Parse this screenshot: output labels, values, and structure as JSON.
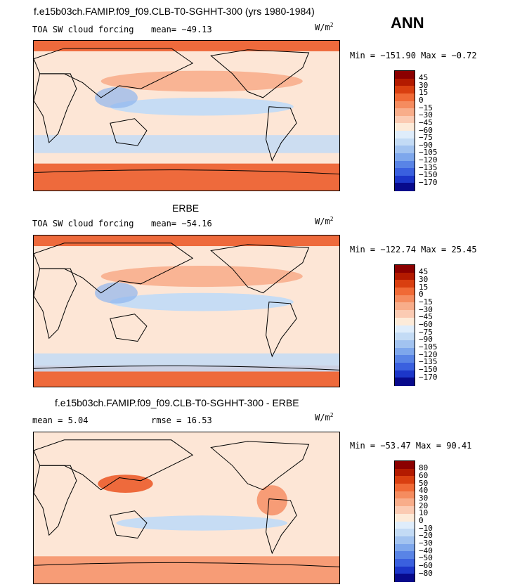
{
  "header": {
    "title": "f.e15b03ch.FAMIP.f09_f09.CLB-T0-SGHHT-300 (yrs 1980-1984)",
    "season": "ANN"
  },
  "panels": [
    {
      "variable": "TOA SW cloud forcing",
      "mean_label": "mean= −49.13",
      "units": "W/m",
      "units_exp": "2",
      "minmax": "Min = −151.90 Max =  −0.72",
      "colorbar": {
        "labels": [
          "45",
          "30",
          "15",
          "0",
          "−15",
          "−30",
          "−45",
          "−60",
          "−75",
          "−90",
          "−105",
          "−120",
          "−135",
          "−150",
          "−170"
        ],
        "colors": [
          "#8b0000",
          "#b31a00",
          "#d93f10",
          "#f06a36",
          "#f58c5f",
          "#f8ad8a",
          "#fbcbb3",
          "#fdebd9",
          "#dfedfb",
          "#c3dbf5",
          "#a2c3f0",
          "#7ea7ec",
          "#5984e6",
          "#3a60df",
          "#1c36c9",
          "#080a8c"
        ]
      }
    },
    {
      "subtitle": "ERBE",
      "variable": "TOA SW cloud forcing",
      "mean_label": "mean= −54.16",
      "units": "W/m",
      "units_exp": "2",
      "minmax": "Min = −122.74 Max =  25.45",
      "colorbar": {
        "labels": [
          "45",
          "30",
          "15",
          "0",
          "−15",
          "−30",
          "−45",
          "−60",
          "−75",
          "−90",
          "−105",
          "−120",
          "−135",
          "−150",
          "−170"
        ],
        "colors": [
          "#8b0000",
          "#b31a00",
          "#d93f10",
          "#f06a36",
          "#f58c5f",
          "#f8ad8a",
          "#fbcbb3",
          "#fdebd9",
          "#dfedfb",
          "#c3dbf5",
          "#a2c3f0",
          "#7ea7ec",
          "#5984e6",
          "#3a60df",
          "#1c36c9",
          "#080a8c"
        ]
      }
    },
    {
      "subtitle": "f.e15b03ch.FAMIP.f09_f09.CLB-T0-SGHHT-300 - ERBE",
      "mean_label": "mean =   5.04",
      "rmse_label": "rmse =  16.53",
      "units": "W/m",
      "units_exp": "2",
      "minmax": "Min = −53.47 Max =  90.41",
      "colorbar": {
        "labels": [
          "80",
          "60",
          "50",
          "40",
          "30",
          "20",
          "10",
          "0",
          "−10",
          "−20",
          "−30",
          "−40",
          "−50",
          "−60",
          "−80"
        ],
        "colors": [
          "#8b0000",
          "#b31a00",
          "#d93f10",
          "#f06a36",
          "#f58c5f",
          "#f8ad8a",
          "#fbcbb3",
          "#fdebd9",
          "#dfedfb",
          "#c3dbf5",
          "#a2c3f0",
          "#7ea7ec",
          "#5984e6",
          "#3a60df",
          "#1c36c9",
          "#080a8c"
        ]
      }
    }
  ],
  "palette": {
    "ocean_light": "#fde6d6",
    "warm_band": "#f58a5e",
    "polar_red": "#ee6a3c",
    "cool_band": "#c6dcf4",
    "blue_mid": "#8fb5ee",
    "coast": "#000000"
  }
}
